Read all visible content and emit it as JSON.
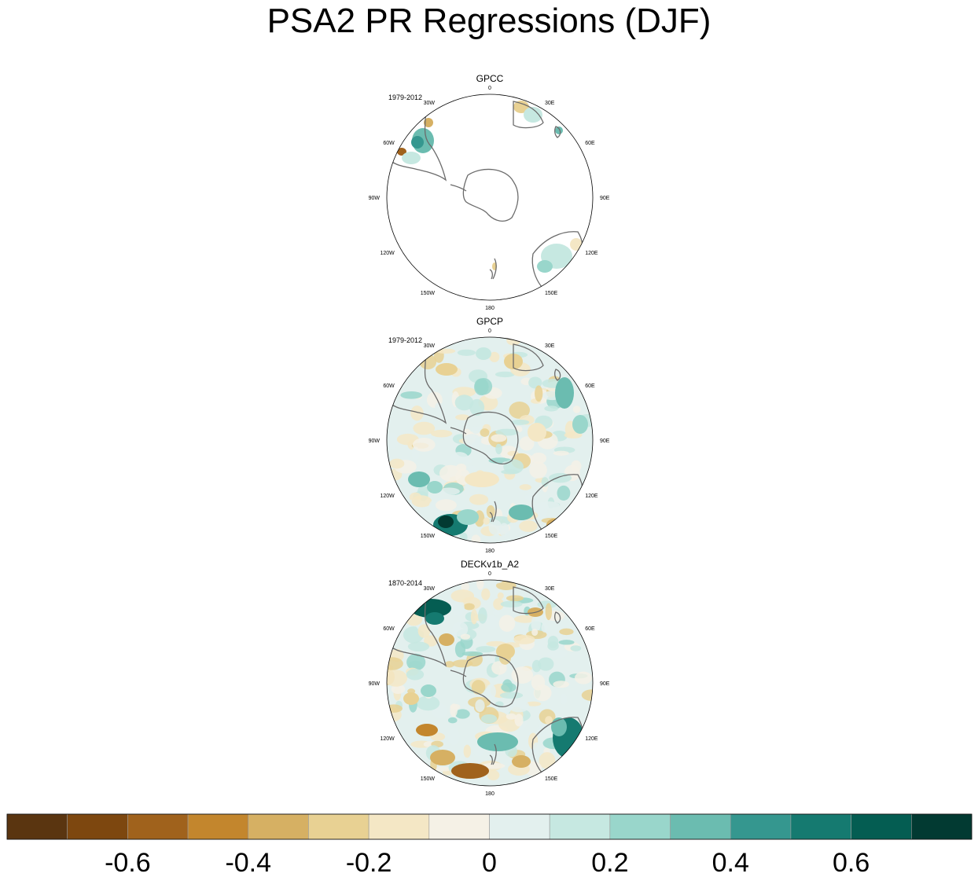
{
  "title": "PSA2 PR Regressions (DJF)",
  "chart_data": {
    "type": "heatmap",
    "projection": "south polar stereographic",
    "panels": [
      {
        "name": "GPCC",
        "period": "1979-2012",
        "coverage": "land only"
      },
      {
        "name": "GPCP",
        "period": "1979-2012",
        "coverage": "global"
      },
      {
        "name": "DECKv1b_A2",
        "period": "1870-2014",
        "coverage": "global"
      }
    ],
    "lon_labels": [
      "0",
      "30E",
      "60E",
      "90E",
      "120E",
      "150E",
      "180",
      "150W",
      "120W",
      "90W",
      "60W",
      "30W"
    ],
    "colorbar": {
      "levels": [
        -0.7,
        -0.6,
        -0.5,
        -0.4,
        -0.3,
        -0.2,
        -0.1,
        0,
        0.1,
        0.2,
        0.3,
        0.4,
        0.5,
        0.6,
        0.7
      ],
      "colors": [
        "#5a3510",
        "#7d470f",
        "#a0621c",
        "#c3862d",
        "#d6b063",
        "#e8d193",
        "#f4e7c5",
        "#f5f1e6",
        "#e3f0ee",
        "#c6e8e1",
        "#99d6cb",
        "#6bbcb0",
        "#35978f",
        "#157a70",
        "#045d52",
        "#023a32"
      ],
      "tick_labels": [
        "-0.6",
        "-0.4",
        "-0.2",
        "0",
        "0.2",
        "0.4",
        "0.6"
      ],
      "tick_values": [
        -0.6,
        -0.4,
        -0.2,
        0,
        0.2,
        0.4,
        0.6
      ]
    }
  }
}
